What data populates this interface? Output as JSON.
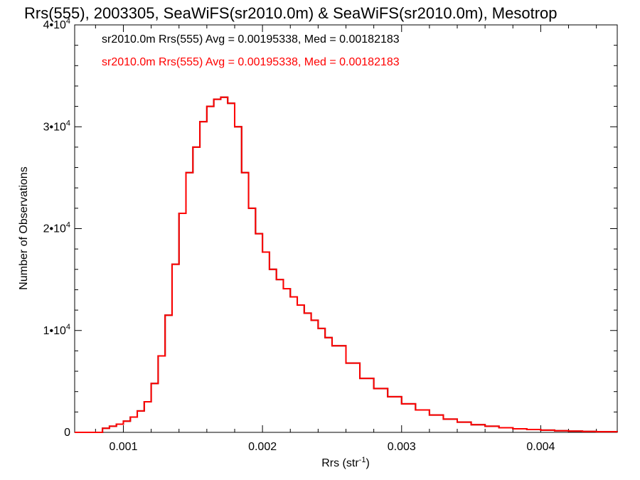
{
  "chart_data": {
    "type": "line",
    "title": "Rrs(555), 2003305, SeaWiFS(sr2010.0m) & SeaWiFS(sr2010.0m), Mesotrop",
    "xlabel": "Rrs (str",
    "xlabel_sup": "-1",
    "xlabel_close": ")",
    "ylabel": "Number of Observations",
    "xlim": [
      0.00065,
      0.00455
    ],
    "ylim": [
      0,
      40000
    ],
    "x_ticks": [
      {
        "value": 0.001,
        "label": "0.001"
      },
      {
        "value": 0.002,
        "label": "0.002"
      },
      {
        "value": 0.003,
        "label": "0.003"
      },
      {
        "value": 0.004,
        "label": "0.004"
      }
    ],
    "y_ticks": [
      {
        "value": 0,
        "label": "0",
        "exp": ""
      },
      {
        "value": 10000,
        "label": "1•10",
        "exp": "4"
      },
      {
        "value": 20000,
        "label": "2•10",
        "exp": "4"
      },
      {
        "value": 30000,
        "label": "3•10",
        "exp": "4"
      },
      {
        "value": 40000,
        "label": "4•10",
        "exp": "4"
      }
    ],
    "grid": false,
    "legend": "top-left",
    "annotations": [
      {
        "text": "sr2010.0m Rrs(555) Avg = 0.00195338, Med = 0.00182183",
        "color": "#000000"
      },
      {
        "text": "sr2010.0m Rrs(555) Avg = 0.00195338, Med = 0.00182183",
        "color": "#ff0000"
      }
    ],
    "series": [
      {
        "color": "#000000",
        "x": [
          0.00065,
          0.0008,
          0.00085,
          0.0009,
          0.00095,
          0.001,
          0.00105,
          0.0011,
          0.00115,
          0.0012,
          0.00125,
          0.0013,
          0.00135,
          0.0014,
          0.00145,
          0.0015,
          0.00155,
          0.0016,
          0.00165,
          0.0017,
          0.00175,
          0.0018,
          0.00185,
          0.0019,
          0.00195,
          0.002,
          0.00205,
          0.0021,
          0.00215,
          0.0022,
          0.00225,
          0.0023,
          0.00235,
          0.0024,
          0.00245,
          0.0025,
          0.0026,
          0.0027,
          0.0028,
          0.0029,
          0.003,
          0.0031,
          0.0032,
          0.0033,
          0.0034,
          0.0035,
          0.0036,
          0.0037,
          0.0038,
          0.0039,
          0.004,
          0.0041,
          0.0042,
          0.0043,
          0.0044,
          0.00455
        ],
        "y": [
          0,
          0,
          400,
          600,
          800,
          1100,
          1500,
          2100,
          3000,
          4800,
          7500,
          11500,
          16500,
          21500,
          25500,
          28000,
          30500,
          32000,
          32700,
          32900,
          32300,
          30000,
          25500,
          22000,
          19500,
          17700,
          16000,
          15000,
          14100,
          13300,
          12500,
          11700,
          11000,
          10200,
          9300,
          8500,
          6800,
          5300,
          4300,
          3500,
          2800,
          2200,
          1700,
          1300,
          1000,
          750,
          600,
          450,
          350,
          280,
          220,
          160,
          120,
          90,
          60,
          40
        ]
      },
      {
        "color": "#ff0000",
        "x": [
          0.00065,
          0.0008,
          0.00085,
          0.0009,
          0.00095,
          0.001,
          0.00105,
          0.0011,
          0.00115,
          0.0012,
          0.00125,
          0.0013,
          0.00135,
          0.0014,
          0.00145,
          0.0015,
          0.00155,
          0.0016,
          0.00165,
          0.0017,
          0.00175,
          0.0018,
          0.00185,
          0.0019,
          0.00195,
          0.002,
          0.00205,
          0.0021,
          0.00215,
          0.0022,
          0.00225,
          0.0023,
          0.00235,
          0.0024,
          0.00245,
          0.0025,
          0.0026,
          0.0027,
          0.0028,
          0.0029,
          0.003,
          0.0031,
          0.0032,
          0.0033,
          0.0034,
          0.0035,
          0.0036,
          0.0037,
          0.0038,
          0.0039,
          0.004,
          0.0041,
          0.0042,
          0.0043,
          0.0044,
          0.00455
        ],
        "y": [
          0,
          0,
          400,
          600,
          800,
          1100,
          1500,
          2100,
          3000,
          4800,
          7500,
          11500,
          16500,
          21500,
          25500,
          28000,
          30500,
          32000,
          32700,
          32900,
          32300,
          30000,
          25500,
          22000,
          19500,
          17700,
          16000,
          15000,
          14100,
          13300,
          12500,
          11700,
          11000,
          10200,
          9300,
          8500,
          6800,
          5300,
          4300,
          3500,
          2800,
          2200,
          1700,
          1300,
          1000,
          750,
          600,
          450,
          350,
          280,
          220,
          160,
          120,
          90,
          60,
          40
        ]
      }
    ]
  }
}
